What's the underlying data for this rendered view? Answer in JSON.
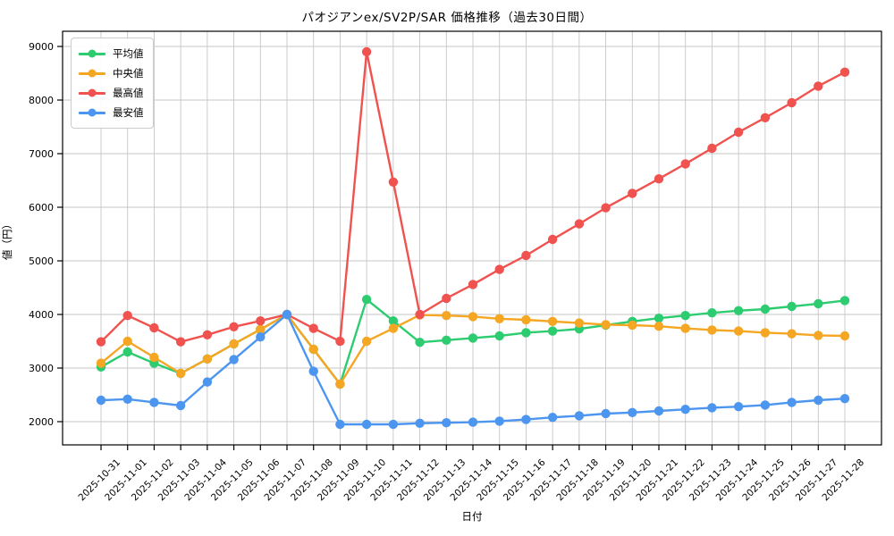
{
  "chart_data": {
    "type": "line",
    "title": "パオジアンex/SV2P/SAR 価格推移（過去30日間）",
    "xlabel": "日付",
    "ylabel": "値（円）",
    "x": [
      "2025-10-31",
      "2025-11-01",
      "2025-11-02",
      "2025-11-03",
      "2025-11-04",
      "2025-11-05",
      "2025-11-06",
      "2025-11-07",
      "2025-11-08",
      "2025-11-09",
      "2025-11-10",
      "2025-11-11",
      "2025-11-12",
      "2025-11-13",
      "2025-11-14",
      "2025-11-15",
      "2025-11-16",
      "2025-11-17",
      "2025-11-18",
      "2025-11-19",
      "2025-11-20",
      "2025-11-21",
      "2025-11-22",
      "2025-11-23",
      "2025-11-24",
      "2025-11-25",
      "2025-11-26",
      "2025-11-27",
      "2025-11-28"
    ],
    "series": [
      {
        "name": "平均値",
        "color": "#2ecc71",
        "values": [
          3020,
          3300,
          3090,
          2900,
          3170,
          3450,
          3720,
          4000,
          3350,
          2700,
          4280,
          3880,
          3480,
          3520,
          3560,
          3600,
          3660,
          3690,
          3730,
          3800,
          3870,
          3930,
          3980,
          4030,
          4070,
          4100,
          4150,
          4200,
          4260
        ]
      },
      {
        "name": "中央値",
        "color": "#f5a623",
        "values": [
          3090,
          3500,
          3200,
          2900,
          3170,
          3450,
          3720,
          4000,
          3350,
          2700,
          3500,
          3740,
          3990,
          3980,
          3960,
          3920,
          3900,
          3870,
          3840,
          3810,
          3800,
          3780,
          3740,
          3710,
          3690,
          3660,
          3640,
          3610,
          3600
        ]
      },
      {
        "name": "最高値",
        "color": "#f0524f",
        "values": [
          3490,
          3980,
          3750,
          3490,
          3620,
          3770,
          3880,
          4000,
          3740,
          3500,
          8900,
          6470,
          4000,
          4300,
          4560,
          4840,
          5100,
          5400,
          5690,
          5990,
          6260,
          6530,
          6810,
          7100,
          7400,
          7670,
          7950,
          8260,
          8520
        ]
      },
      {
        "name": "最安値",
        "color": "#4d96f0",
        "values": [
          2400,
          2420,
          2360,
          2300,
          2740,
          3160,
          3580,
          4000,
          2940,
          1950,
          1950,
          1950,
          1970,
          1980,
          1990,
          2010,
          2040,
          2080,
          2110,
          2150,
          2170,
          2200,
          2230,
          2260,
          2280,
          2310,
          2360,
          2400,
          2430
        ]
      }
    ],
    "yticks": [
      2000,
      3000,
      4000,
      5000,
      6000,
      7000,
      8000,
      9000
    ],
    "ylim": [
      1570,
      9280
    ],
    "grid": true,
    "grid_color": "#c6c6c6",
    "legend_position": "top-left",
    "x_tick_rotation": 45
  }
}
